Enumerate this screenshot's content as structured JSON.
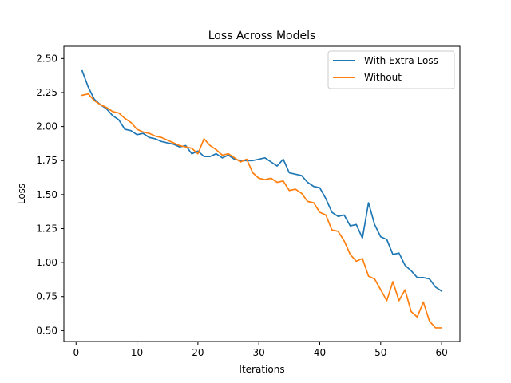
{
  "chart_data": {
    "type": "line",
    "title": "Loss Across Models",
    "xlabel": "Iterations",
    "ylabel": "Loss",
    "xlim": [
      -2,
      63
    ],
    "ylim": [
      0.42,
      2.59
    ],
    "xticks": [
      0,
      10,
      20,
      30,
      40,
      50,
      60
    ],
    "yticks": [
      0.5,
      0.75,
      1.0,
      1.25,
      1.5,
      1.75,
      2.0,
      2.25,
      2.5
    ],
    "ytick_labels": [
      "0.50",
      "0.75",
      "1.00",
      "1.25",
      "1.50",
      "1.75",
      "2.00",
      "2.25",
      "2.50"
    ],
    "legend_position": "upper right",
    "x": [
      1,
      2,
      3,
      4,
      5,
      6,
      7,
      8,
      9,
      10,
      11,
      12,
      13,
      14,
      15,
      16,
      17,
      18,
      19,
      20,
      21,
      22,
      23,
      24,
      25,
      26,
      27,
      28,
      29,
      30,
      31,
      32,
      33,
      34,
      35,
      36,
      37,
      38,
      39,
      40,
      41,
      42,
      43,
      44,
      45,
      46,
      47,
      48,
      49,
      50,
      51,
      52,
      53,
      54,
      55,
      56,
      57,
      58,
      59,
      60
    ],
    "series": [
      {
        "name": "With Extra Loss",
        "color": "#1f77b4",
        "values": [
          2.41,
          2.29,
          2.2,
          2.16,
          2.13,
          2.08,
          2.05,
          1.98,
          1.97,
          1.94,
          1.95,
          1.92,
          1.91,
          1.89,
          1.88,
          1.87,
          1.85,
          1.86,
          1.8,
          1.82,
          1.78,
          1.78,
          1.8,
          1.77,
          1.79,
          1.76,
          1.75,
          1.75,
          1.75,
          1.76,
          1.77,
          1.74,
          1.71,
          1.76,
          1.66,
          1.65,
          1.64,
          1.59,
          1.56,
          1.55,
          1.47,
          1.37,
          1.34,
          1.35,
          1.27,
          1.28,
          1.18,
          1.44,
          1.28,
          1.19,
          1.17,
          1.06,
          1.07,
          0.98,
          0.94,
          0.89,
          0.89,
          0.88,
          0.82,
          0.79
        ]
      },
      {
        "name": "Without",
        "color": "#ff7f0e",
        "values": [
          2.23,
          2.24,
          2.19,
          2.16,
          2.14,
          2.11,
          2.1,
          2.06,
          2.03,
          1.98,
          1.96,
          1.95,
          1.93,
          1.92,
          1.9,
          1.88,
          1.86,
          1.85,
          1.84,
          1.8,
          1.91,
          1.86,
          1.83,
          1.79,
          1.8,
          1.77,
          1.74,
          1.76,
          1.66,
          1.62,
          1.61,
          1.62,
          1.59,
          1.6,
          1.53,
          1.54,
          1.51,
          1.45,
          1.44,
          1.37,
          1.35,
          1.24,
          1.23,
          1.16,
          1.06,
          1.01,
          1.03,
          0.9,
          0.88,
          0.8,
          0.72,
          0.86,
          0.72,
          0.8,
          0.64,
          0.6,
          0.71,
          0.57,
          0.52,
          0.52
        ]
      }
    ]
  }
}
